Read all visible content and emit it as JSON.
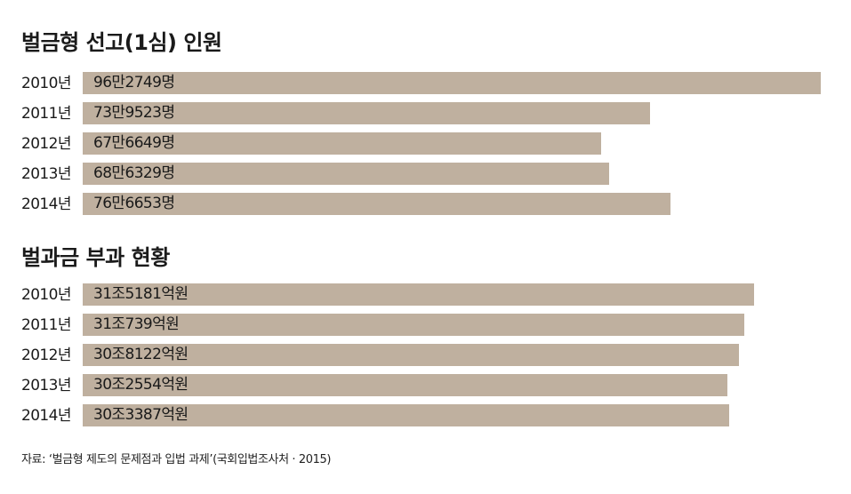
{
  "chart_data": [
    {
      "type": "bar",
      "orientation": "horizontal",
      "title": "벌금형 선고(1심) 인원",
      "categories": [
        "2010년",
        "2011년",
        "2012년",
        "2013년",
        "2014년"
      ],
      "values": [
        962749,
        739523,
        676649,
        686329,
        766653
      ],
      "value_labels": [
        "96만2749명",
        "73만9523명",
        "67만6649명",
        "68만6329명",
        "76만6653명"
      ],
      "xlim": [
        0,
        962749
      ],
      "grid": false,
      "legend": "none",
      "bar_color": "#bfb09f"
    },
    {
      "type": "bar",
      "orientation": "horizontal",
      "title": "벌과금 부과 현황",
      "categories": [
        "2010년",
        "2011년",
        "2012년",
        "2013년",
        "2014년"
      ],
      "values": [
        315181,
        310739,
        308122,
        302554,
        303387
      ],
      "value_labels": [
        "31조5181억원",
        "31조739억원",
        "30조8122억원",
        "30조2554억원",
        "30조3387억원"
      ],
      "xlim": [
        0,
        346600
      ],
      "grid": false,
      "legend": "none",
      "bar_color": "#bfb09f"
    }
  ],
  "source": "자료: ‘벌금형 제도의 문제점과 입법 과제’(국회입법조사처 · 2015)"
}
